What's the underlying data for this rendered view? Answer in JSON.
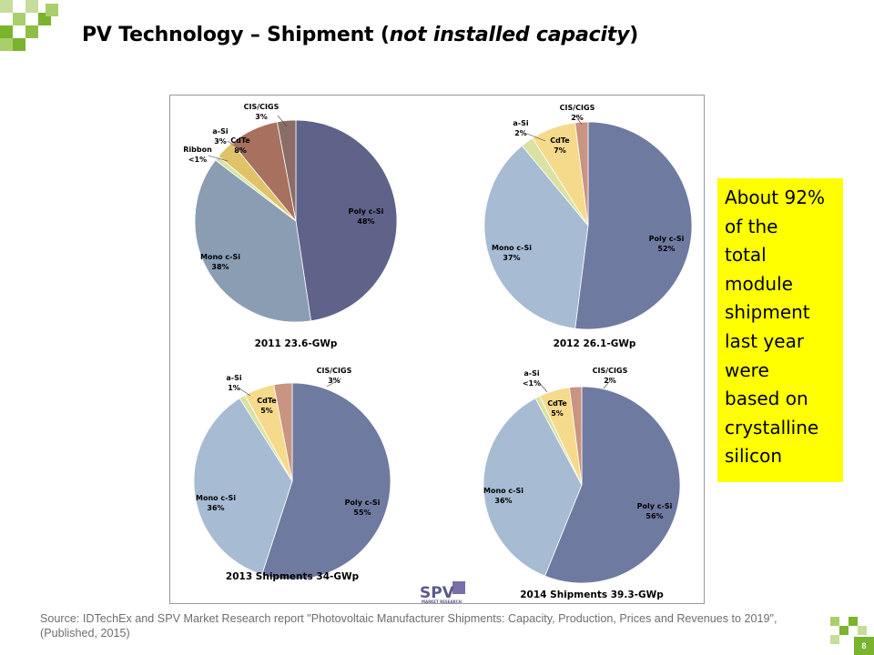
{
  "header": {
    "title_main": "PV Technology – Shipment (",
    "title_italic": "not installed capacity",
    "title_end": ")"
  },
  "chart_data": [
    {
      "type": "pie",
      "caption": "2011 23.6-GWp",
      "slices": [
        {
          "label": "Poly c-Si",
          "value_label": "48%",
          "value": 48,
          "color": "#5f6289"
        },
        {
          "label": "Mono c-Si",
          "value_label": "38%",
          "value": 38,
          "color": "#8a9db3"
        },
        {
          "label": "Ribbon",
          "value_label": "<1%",
          "value": 0.8,
          "color": "#d8e3a8"
        },
        {
          "label": "a-Si",
          "value_label": "3%",
          "value": 3,
          "color": "#e0c268"
        },
        {
          "label": "CdTe",
          "value_label": "8%",
          "value": 8,
          "color": "#a8705f"
        },
        {
          "label": "CIS/CIGS",
          "value_label": "3%",
          "value": 3,
          "color": "#8a6e66"
        }
      ]
    },
    {
      "type": "pie",
      "caption": "2012 26.1-GWp",
      "slices": [
        {
          "label": "Poly c-Si",
          "value_label": "52%",
          "value": 52,
          "color": "#6f7aa1"
        },
        {
          "label": "Mono c-Si",
          "value_label": "37%",
          "value": 37,
          "color": "#a7bbd3"
        },
        {
          "label": "a-Si",
          "value_label": "2%",
          "value": 2,
          "color": "#d9e2a2"
        },
        {
          "label": "CdTe",
          "value_label": "7%",
          "value": 7,
          "color": "#f6da8c"
        },
        {
          "label": "CIS/CIGS",
          "value_label": "2%",
          "value": 2,
          "color": "#c99481"
        }
      ]
    },
    {
      "type": "pie",
      "caption": "2013 Shipments 34-GWp",
      "slices": [
        {
          "label": "Poly c-Si",
          "value_label": "55%",
          "value": 55,
          "color": "#6f7aa1"
        },
        {
          "label": "Mono c-Si",
          "value_label": "36%",
          "value": 36,
          "color": "#a7bbd3"
        },
        {
          "label": "a-Si",
          "value_label": "1%",
          "value": 1,
          "color": "#d9e2a2"
        },
        {
          "label": "CdTe",
          "value_label": "5%",
          "value": 5,
          "color": "#f6da8c"
        },
        {
          "label": "CIS/CIGS",
          "value_label": "3%",
          "value": 3,
          "color": "#c99481"
        }
      ]
    },
    {
      "type": "pie",
      "caption": "2014 Shipments 39.3-GWp",
      "slices": [
        {
          "label": "Poly c-Si",
          "value_label": "56%",
          "value": 56,
          "color": "#6f7aa1"
        },
        {
          "label": "Mono c-Si",
          "value_label": "36%",
          "value": 36,
          "color": "#a7bbd3"
        },
        {
          "label": "a-Si",
          "value_label": "<1%",
          "value": 0.8,
          "color": "#d9e2a2"
        },
        {
          "label": "CdTe",
          "value_label": "5%",
          "value": 5,
          "color": "#f6da8c"
        },
        {
          "label": "CIS/CIGS",
          "value_label": "2%",
          "value": 2,
          "color": "#c99481"
        }
      ]
    }
  ],
  "figure_logo": {
    "text": "SPV",
    "subtitle": "MARKET RESEARCH"
  },
  "callout": {
    "lines": [
      "About 92%",
      "of the",
      "total",
      "module",
      "shipment",
      "last year",
      "were",
      "based on",
      "crystalline",
      "silicon"
    ]
  },
  "footer": {
    "source": "Source: IDTechEx and SPV Market Research report \"Photovoltaic Manufacturer Shipments: Capacity, Production, Prices and Revenues to 2019\", (Published, 2015)",
    "page_number": "8"
  },
  "colors": {
    "brand_green": "#7ab32e",
    "callout_bg": "#ffff00"
  }
}
